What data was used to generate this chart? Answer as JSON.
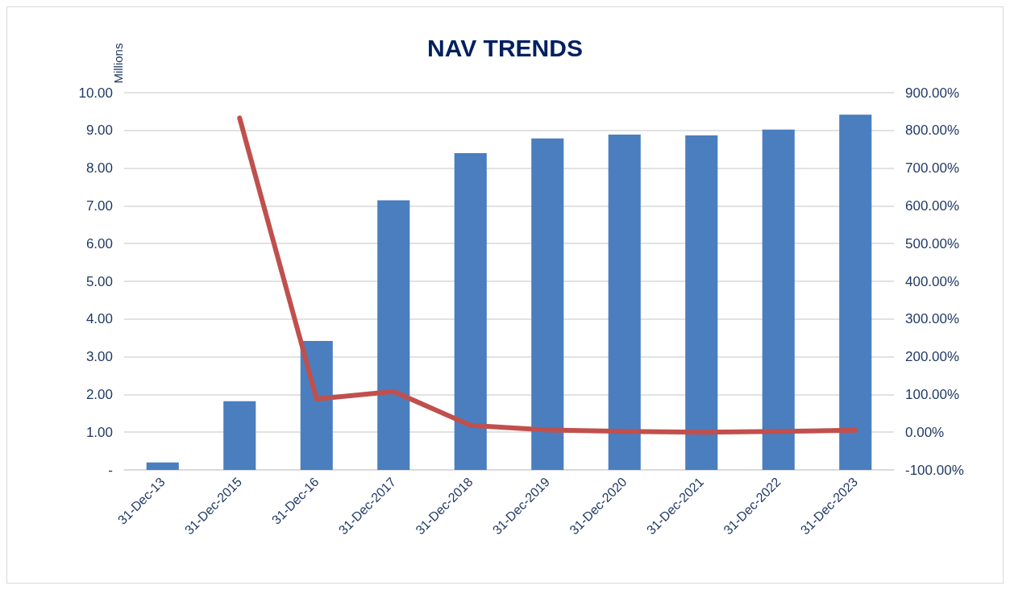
{
  "chart_data": {
    "type": "bar",
    "title": "NAV TRENDS",
    "ylabel": "Millions",
    "categories": [
      "31-Dec-13",
      "31-Dec-2015",
      "31-Dec-16",
      "31-Dec-2017",
      "31-Dec-2018",
      "31-Dec-2019",
      "31-Dec-2020",
      "31-Dec-2021",
      "31-Dec-2022",
      "31-Dec-2023"
    ],
    "series": [
      {
        "color": "#4a7ebf",
        "values": [
          0.2,
          1.82,
          3.42,
          7.15,
          8.4,
          8.79,
          8.89,
          8.87,
          9.02,
          9.42
        ]
      },
      {
        "type": "line",
        "axis": "y2",
        "color": "#c0504d",
        "values": [
          null,
          833,
          88,
          108,
          18,
          6,
          2,
          0,
          2,
          5
        ]
      }
    ],
    "ylim": [
      0,
      10
    ],
    "yticks": [
      {
        "value": 0,
        "label": "-"
      },
      {
        "value": 1,
        "label": "1.00"
      },
      {
        "value": 2,
        "label": "2.00"
      },
      {
        "value": 3,
        "label": "3.00"
      },
      {
        "value": 4,
        "label": "4.00"
      },
      {
        "value": 5,
        "label": "5.00"
      },
      {
        "value": 6,
        "label": "6.00"
      },
      {
        "value": 7,
        "label": "7.00"
      },
      {
        "value": 8,
        "label": "8.00"
      },
      {
        "value": 9,
        "label": "9.00"
      },
      {
        "value": 10,
        "label": "10.00"
      }
    ],
    "y2lim": [
      -100,
      900
    ],
    "y2ticks": [
      {
        "value": -100,
        "label": "-100.00%"
      },
      {
        "value": 0,
        "label": "0.00%"
      },
      {
        "value": 100,
        "label": "100.00%"
      },
      {
        "value": 200,
        "label": "200.00%"
      },
      {
        "value": 300,
        "label": "300.00%"
      },
      {
        "value": 400,
        "label": "400.00%"
      },
      {
        "value": 500,
        "label": "500.00%"
      },
      {
        "value": 600,
        "label": "600.00%"
      },
      {
        "value": 700,
        "label": "700.00%"
      },
      {
        "value": 800,
        "label": "800.00%"
      },
      {
        "value": 900,
        "label": "900.00%"
      }
    ],
    "grid": "y",
    "marker": "none",
    "line_style": "solid"
  }
}
